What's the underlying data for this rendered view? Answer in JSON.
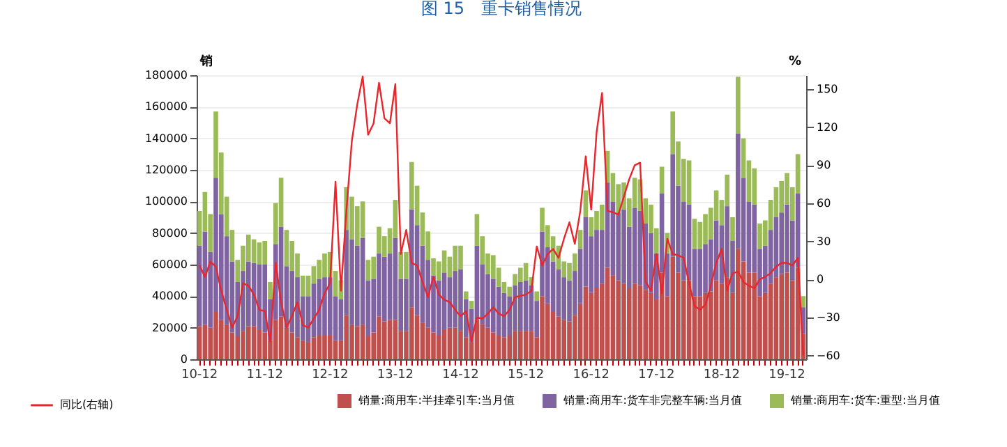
{
  "chart_data": {
    "type": "bar",
    "title": "图 15　重卡销售情况",
    "ylabel": "销",
    "y2label": "%",
    "stacked": true,
    "grid": "y",
    "legend": "bottom",
    "categories": [
      "10-12",
      null,
      null,
      null,
      null,
      null,
      null,
      null,
      null,
      null,
      null,
      null,
      "11-12",
      null,
      null,
      null,
      null,
      null,
      null,
      null,
      null,
      null,
      null,
      null,
      "12-12",
      null,
      null,
      null,
      null,
      null,
      null,
      null,
      null,
      null,
      null,
      null,
      "13-12",
      null,
      null,
      null,
      null,
      null,
      null,
      null,
      null,
      null,
      null,
      null,
      "14-12",
      null,
      null,
      null,
      null,
      null,
      null,
      null,
      null,
      null,
      null,
      null,
      "15-12",
      null,
      null,
      null,
      null,
      null,
      null,
      null,
      null,
      null,
      null,
      null,
      "16-12",
      null,
      null,
      null,
      null,
      null,
      null,
      null,
      null,
      null,
      null,
      null,
      "17-12",
      null,
      null,
      null,
      null,
      null,
      null,
      null,
      null,
      null,
      null,
      null,
      "18-12",
      null,
      null,
      null,
      null,
      null,
      null,
      null,
      null,
      null,
      null,
      null,
      "19-12",
      null,
      null,
      null
    ],
    "ylim": [
      0,
      180000
    ],
    "yticks": [
      0,
      20000,
      40000,
      60000,
      80000,
      100000,
      120000,
      140000,
      160000,
      180000
    ],
    "y2lim": [
      -63,
      161
    ],
    "y2ticks": [
      -60,
      -30,
      0,
      30,
      60,
      90,
      120,
      150
    ],
    "series": [
      {
        "name": "销量:商用车:半挂牵引车:当月值",
        "color": "#c0504d",
        "values": [
          21000,
          22000,
          20000,
          30000,
          25000,
          22000,
          17000,
          15000,
          18000,
          21000,
          21000,
          19000,
          17000,
          12000,
          25000,
          27000,
          20000,
          17000,
          14000,
          12000,
          11000,
          14000,
          15000,
          15000,
          15000,
          12000,
          12000,
          28000,
          22000,
          21000,
          22000,
          15000,
          17000,
          27000,
          24000,
          25000,
          25000,
          18000,
          18000,
          33000,
          28000,
          23000,
          20000,
          17000,
          15000,
          19000,
          20000,
          20000,
          18000,
          14000,
          11000,
          25000,
          22000,
          20000,
          17000,
          15000,
          14000,
          15000,
          18000,
          18000,
          18000,
          18000,
          14000,
          40000,
          35000,
          30000,
          27000,
          25000,
          24000,
          28000,
          35000,
          46000,
          42000,
          45000,
          48000,
          58000,
          53000,
          50000,
          48000,
          45000,
          48000,
          47000,
          44000,
          42000,
          38000,
          55000,
          40000,
          65000,
          55000,
          50000,
          50000,
          40000,
          40000,
          42000,
          43000,
          50000,
          48000,
          52000,
          42000,
          70000,
          62000,
          55000,
          55000,
          40000,
          42000,
          48000,
          52000,
          54000,
          55000,
          50000,
          58000,
          16000
        ]
      },
      {
        "name": "销量:商用车:货车非完整车辆:当月值",
        "color": "#8064a2",
        "values": [
          51000,
          59000,
          48000,
          85000,
          67000,
          56000,
          45000,
          34000,
          38000,
          41000,
          40000,
          41000,
          43000,
          26000,
          48000,
          57000,
          39000,
          39000,
          38000,
          28000,
          29000,
          34000,
          36000,
          37000,
          37000,
          28000,
          26000,
          54000,
          54000,
          51000,
          55000,
          35000,
          34000,
          40000,
          41000,
          42000,
          52000,
          33000,
          33000,
          62000,
          57000,
          49000,
          43000,
          36000,
          35000,
          36000,
          32000,
          36000,
          39000,
          24000,
          21000,
          47000,
          38000,
          34000,
          34000,
          31000,
          28000,
          25000,
          29000,
          31000,
          32000,
          29000,
          23000,
          41000,
          36000,
          32000,
          30000,
          27000,
          26000,
          28000,
          35000,
          44000,
          36000,
          37000,
          34000,
          54000,
          47000,
          43000,
          47000,
          39000,
          48000,
          47000,
          42000,
          38000,
          29000,
          50000,
          27000,
          65000,
          55000,
          50000,
          48000,
          30000,
          30000,
          31000,
          33000,
          38000,
          37000,
          45000,
          33000,
          73000,
          53000,
          45000,
          43000,
          30000,
          30000,
          34000,
          38000,
          39000,
          43000,
          38000,
          47000,
          17000
        ]
      },
      {
        "name": "销量:商用车:货车:重型:当月值",
        "color": "#9bbb59",
        "values": [
          22000,
          25000,
          24000,
          42000,
          39000,
          25000,
          20000,
          14000,
          16000,
          17000,
          15000,
          14000,
          15000,
          11000,
          26000,
          31000,
          23000,
          19000,
          15000,
          13000,
          13000,
          11000,
          12000,
          15000,
          16000,
          16000,
          12000,
          27000,
          27000,
          25000,
          23000,
          13000,
          14000,
          17000,
          13000,
          16000,
          24000,
          17000,
          17000,
          30000,
          25000,
          21000,
          18000,
          11000,
          12000,
          14000,
          13000,
          16000,
          15000,
          5000,
          5000,
          20000,
          18000,
          13000,
          15000,
          12000,
          7000,
          6000,
          7000,
          9000,
          11000,
          5000,
          6000,
          15000,
          14000,
          16000,
          15000,
          10000,
          11000,
          11000,
          12000,
          17000,
          12000,
          12000,
          16000,
          20000,
          18000,
          18000,
          17000,
          18000,
          19000,
          20000,
          16000,
          18000,
          16000,
          17000,
          13000,
          27000,
          28000,
          27000,
          28000,
          19000,
          17000,
          19000,
          20000,
          19000,
          16000,
          20000,
          15000,
          36000,
          25000,
          26000,
          23000,
          16000,
          16000,
          19000,
          19000,
          20000,
          20000,
          21000,
          25000,
          7000
        ]
      },
      {
        "name": "同比(右轴)",
        "type": "line",
        "axis": "y2",
        "color": "#e8262b",
        "values": [
          11,
          2,
          14,
          10,
          -9,
          -24,
          -38,
          -29,
          -3,
          -5,
          -12,
          -24,
          -25,
          -49,
          13,
          -18,
          -38,
          -29,
          -18,
          -36,
          -38,
          -31,
          -24,
          -11,
          -3,
          77,
          -9,
          54,
          109,
          138,
          160,
          114,
          123,
          155,
          127,
          123,
          154,
          20,
          39,
          13,
          11,
          -2,
          -14,
          2,
          -12,
          -16,
          -18,
          -24,
          -29,
          -25,
          -49,
          -30,
          -31,
          -27,
          -22,
          -27,
          -29,
          -24,
          -14,
          -13,
          -12,
          -9,
          26,
          11,
          20,
          24,
          17,
          32,
          45,
          28,
          54,
          97,
          55,
          116,
          147,
          54,
          53,
          51,
          65,
          79,
          90,
          92,
          -2,
          -9,
          20,
          -11,
          32,
          20,
          19,
          17,
          -3,
          -21,
          -24,
          -20,
          -5,
          13,
          24,
          -9,
          5,
          6,
          -2,
          -5,
          -7,
          0,
          2,
          5,
          10,
          13,
          13,
          11,
          17,
          -60
        ]
      }
    ]
  }
}
